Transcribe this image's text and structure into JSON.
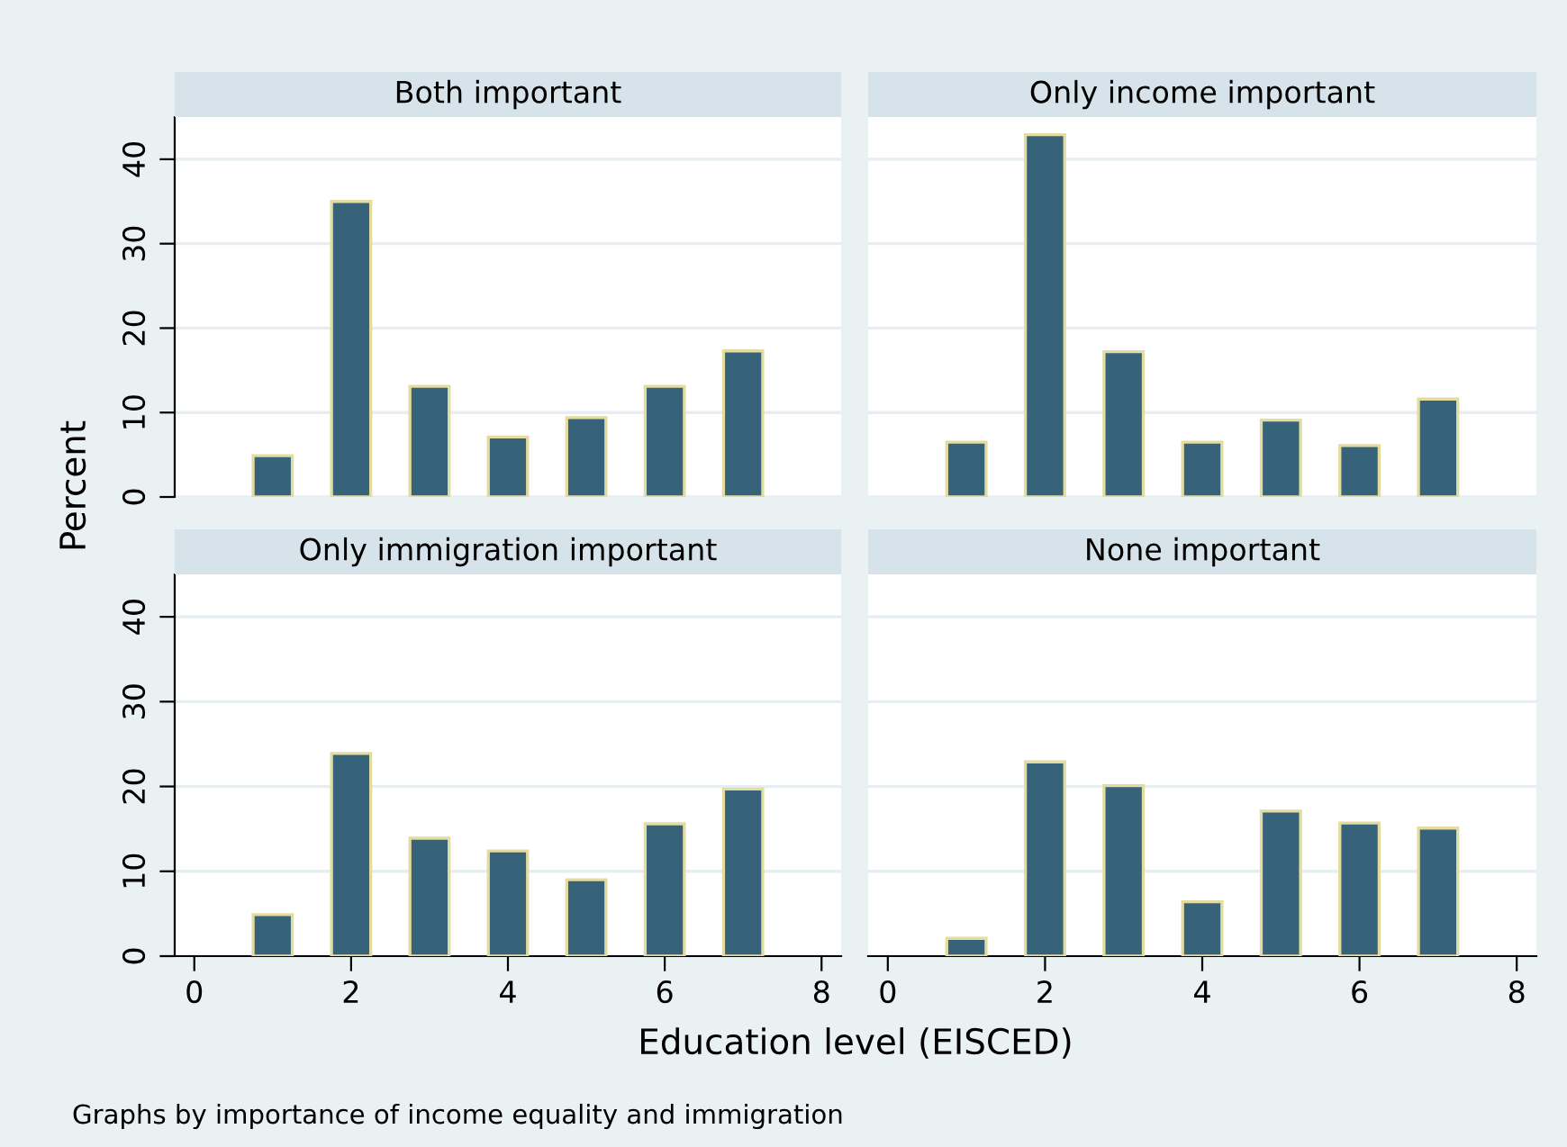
{
  "chart_data": [
    {
      "type": "bar",
      "title": "Both important",
      "ylabel": "Percent",
      "x": [
        1,
        2,
        3,
        4,
        5,
        6,
        7
      ],
      "series": [
        {
          "color": "#36627a",
          "values": [
            4.9,
            35,
            13.1,
            7.1,
            9.4,
            13.1,
            17.3
          ]
        }
      ],
      "xlim": [
        -0.25,
        8.25
      ],
      "xticks": [
        0,
        2,
        4,
        6,
        8
      ],
      "ylim": [
        0,
        45
      ],
      "yticks": [
        0,
        10,
        20,
        30,
        40
      ],
      "grid": "y",
      "tick_labels": "y"
    },
    {
      "type": "bar",
      "title": "Only income important",
      "x": [
        1,
        2,
        3,
        4,
        5,
        6,
        7
      ],
      "series": [
        {
          "color": "#36627a",
          "values": [
            6.5,
            42.9,
            17.2,
            6.5,
            9.1,
            6.1,
            11.6
          ]
        }
      ],
      "xlim": [
        -0.25,
        8.25
      ],
      "xticks": [
        0,
        2,
        4,
        6,
        8
      ],
      "ylim": [
        0,
        45
      ],
      "yticks": [
        0,
        10,
        20,
        30,
        40
      ],
      "grid": "y",
      "tick_labels": false
    },
    {
      "type": "bar",
      "title": "Only immigration important",
      "xlabel": "Education level (EISCED)",
      "x": [
        1,
        2,
        3,
        4,
        5,
        6,
        7
      ],
      "series": [
        {
          "color": "#36627a",
          "values": [
            4.9,
            23.9,
            13.9,
            12.4,
            9.0,
            15.6,
            19.7
          ]
        }
      ],
      "xlim": [
        -0.25,
        8.25
      ],
      "xticks": [
        0,
        2,
        4,
        6,
        8
      ],
      "ylim": [
        0,
        45
      ],
      "yticks": [
        0,
        10,
        20,
        30,
        40
      ],
      "grid": "y"
    },
    {
      "type": "bar",
      "title": "None important",
      "x": [
        1,
        2,
        3,
        4,
        5,
        6,
        7
      ],
      "series": [
        {
          "color": "#36627a",
          "values": [
            2.1,
            22.9,
            20.1,
            6.4,
            17.1,
            15.7,
            15.1
          ]
        }
      ],
      "xlim": [
        -0.25,
        8.25
      ],
      "xticks": [
        0,
        2,
        4,
        6,
        8
      ],
      "ylim": [
        0,
        45
      ],
      "yticks": [
        0,
        10,
        20,
        30,
        40
      ],
      "grid": "y",
      "tick_labels": "x",
      "annotations": [
        "Graphs by importance of income equality and immigration"
      ]
    }
  ]
}
